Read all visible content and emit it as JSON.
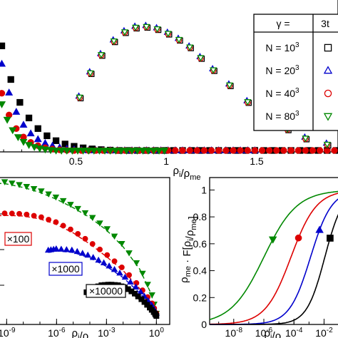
{
  "chart_data": [
    {
      "id": "top",
      "type": "scatter",
      "xlabel": "ρ_i/ρ_me",
      "xlim": [
        0.08,
        1.95
      ],
      "ylim": [
        0,
        1.0
      ],
      "xticks": [
        {
          "value": 0.5,
          "label": "0.5"
        },
        {
          "value": 1.0,
          "label": "1"
        },
        {
          "value": 1.5,
          "label": "1.5"
        }
      ],
      "legend": {
        "placement": "top-right",
        "header_left": "γ =",
        "header_right": "3t",
        "entries": [
          {
            "label": "N = 10",
            "exp": "3",
            "marker": "square",
            "color": "#000000"
          },
          {
            "label": "N = 20",
            "exp": "3",
            "marker": "triangle-up",
            "color": "#0000cc"
          },
          {
            "label": "N = 40",
            "exp": "3",
            "marker": "circle",
            "color": "#dd0000"
          },
          {
            "label": "N = 80",
            "exp": "3",
            "marker": "triangle-down",
            "color": "#008800"
          }
        ]
      },
      "decay_series": [
        {
          "name": "N = 10^3",
          "marker": "square",
          "color": "#000000",
          "x0": 0.03,
          "tau": 0.13,
          "step": 0.05,
          "x_end": 1.95
        },
        {
          "name": "N = 20^3",
          "marker": "triangle-up",
          "color": "#0000cc",
          "x0": 0.025,
          "tau": 0.1,
          "step": 0.04,
          "x_end": 1.5
        },
        {
          "name": "N = 40^3",
          "marker": "circle",
          "color": "#dd0000",
          "x0": 0.0,
          "tau": 0.085,
          "step": 0.04,
          "x_end": 1.95
        },
        {
          "name": "N = 80^3",
          "marker": "triangle-down",
          "color": "#008800",
          "x0": -0.005,
          "tau": 0.075,
          "step": 0.03,
          "x_end": 1.0
        }
      ],
      "hump_points": {
        "x": [
          0.52,
          0.58,
          0.64,
          0.71,
          0.77,
          0.83,
          0.89,
          0.95,
          1.01,
          1.07,
          1.13,
          1.19,
          1.26,
          1.35,
          1.45,
          1.56,
          1.67,
          1.77,
          1.89
        ],
        "y": [
          0.36,
          0.52,
          0.64,
          0.73,
          0.79,
          0.82,
          0.825,
          0.81,
          0.78,
          0.74,
          0.69,
          0.62,
          0.54,
          0.44,
          0.33,
          0.23,
          0.15,
          0.09,
          0.05
        ]
      }
    },
    {
      "id": "bottom-left",
      "type": "line",
      "xscale": "log",
      "xlabel": "ρ_i/ρ_me",
      "xlim": [
        -10,
        0.2
      ],
      "ylim": [
        0,
        1.0
      ],
      "xticks": [
        {
          "value": -9,
          "label": "10",
          "exp": "-9"
        },
        {
          "value": -6,
          "label": "10",
          "exp": "-6"
        },
        {
          "value": -3,
          "label": "10",
          "exp": "-3"
        },
        {
          "value": 0,
          "label": "10",
          "exp": "0"
        }
      ],
      "annotations": [
        {
          "text": "×100",
          "color": "#dd0000"
        },
        {
          "text": "×1000",
          "color": "#0000cc"
        },
        {
          "text": "×10000",
          "color": "#000000"
        }
      ],
      "series": [
        {
          "name": "×1",
          "marker": "triangle-down",
          "color": "#008800",
          "x": [
            -10,
            -9,
            -8,
            -7,
            -6,
            -5,
            -4,
            -3,
            -2,
            -1,
            -0.3,
            0
          ],
          "y": [
            1.0,
            0.99,
            0.965,
            0.93,
            0.88,
            0.82,
            0.75,
            0.66,
            0.54,
            0.38,
            0.2,
            0.05
          ]
        },
        {
          "name": "×100",
          "marker": "circle",
          "color": "#dd0000",
          "x": [
            -10,
            -9,
            -8,
            -7,
            -6,
            -5,
            -4,
            -3,
            -2,
            -1,
            -0.3,
            0
          ],
          "y": [
            0.76,
            0.765,
            0.76,
            0.74,
            0.7,
            0.64,
            0.56,
            0.47,
            0.37,
            0.24,
            0.13,
            0.05
          ]
        },
        {
          "name": "×1000",
          "marker": "triangle-up",
          "color": "#0000cc",
          "x": [
            -6.5,
            -6,
            -5,
            -4,
            -3,
            -2,
            -1,
            -0.3,
            0
          ],
          "y": [
            0.5,
            0.51,
            0.5,
            0.46,
            0.4,
            0.32,
            0.21,
            0.11,
            0.05
          ]
        },
        {
          "name": "×10000",
          "marker": "square",
          "color": "#000000",
          "x": [
            -4.2,
            -3.8,
            -3.3,
            -2.8,
            -2.3,
            -1.8,
            -1.3,
            -0.8,
            -0.4,
            -0.1,
            0
          ],
          "y": [
            0.2,
            0.23,
            0.25,
            0.255,
            0.25,
            0.23,
            0.19,
            0.14,
            0.09,
            0.05,
            0.03
          ]
        }
      ]
    },
    {
      "id": "bottom-right",
      "type": "line",
      "xscale": "log",
      "xlabel": "ρ_i/ρ_me",
      "ylabel": "ρ_me · F[ρ_i/ρ_me]",
      "xlim": [
        -9.6,
        -0.6
      ],
      "ylim": [
        0,
        1.05
      ],
      "yticks": [
        {
          "value": 0,
          "label": "0"
        },
        {
          "value": 0.2,
          "label": "0.2"
        },
        {
          "value": 0.4,
          "label": "0.4"
        },
        {
          "value": 0.6,
          "label": "0.6"
        },
        {
          "value": 0.8,
          "label": "0.8"
        },
        {
          "value": 1.0,
          "label": "1"
        }
      ],
      "xticks": [
        {
          "value": -8,
          "label": "10",
          "exp": "-8"
        },
        {
          "value": -6,
          "label": "10",
          "exp": "-6"
        },
        {
          "value": -4,
          "label": "10",
          "exp": "-4"
        },
        {
          "value": -2,
          "label": "10",
          "exp": "-2"
        }
      ],
      "series": [
        {
          "name": "N = 80^3",
          "marker": "triangle-down",
          "color": "#008800",
          "center": -6.0,
          "width": 1.1,
          "marker_x": -5.4
        },
        {
          "name": "N = 40^3",
          "marker": "circle",
          "color": "#dd0000",
          "center": -4.2,
          "width": 0.85,
          "marker_x": -3.7
        },
        {
          "name": "N = 20^3",
          "marker": "triangle-up",
          "color": "#0000cc",
          "center": -2.9,
          "width": 0.7,
          "marker_x": -2.3
        },
        {
          "name": "N = 10^3",
          "marker": "square",
          "color": "#000000",
          "center": -1.95,
          "width": 0.6,
          "marker_x": -1.6
        }
      ]
    }
  ]
}
